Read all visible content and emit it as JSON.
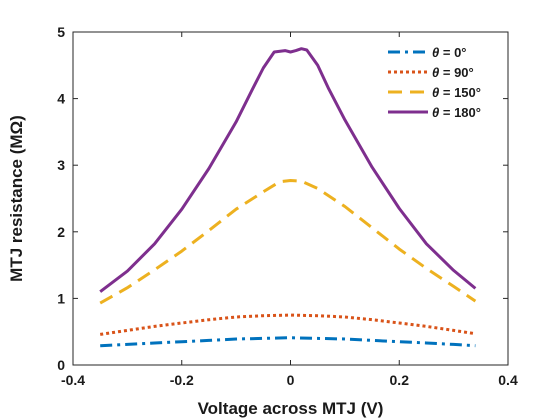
{
  "chart_data": {
    "type": "line",
    "title": "",
    "xlabel": "Voltage across MTJ (V)",
    "ylabel": "MTJ resistance (MΩ)",
    "xlim": [
      -0.4,
      0.4
    ],
    "ylim": [
      0,
      5
    ],
    "xticks": [
      -0.4,
      -0.2,
      0,
      0.2,
      0.4
    ],
    "xtick_labels": [
      "-0.4",
      "-0.2",
      "0",
      "0.2",
      "0.4"
    ],
    "yticks": [
      0,
      1,
      2,
      3,
      4,
      5
    ],
    "ytick_labels": [
      "0",
      "1",
      "2",
      "3",
      "4",
      "5"
    ],
    "grid": false,
    "legend_position": "top-right",
    "series": [
      {
        "name": "θ = 0°",
        "legend_symbol": "θ",
        "legend_suffix": " = 0°",
        "color": "#0072BD",
        "dash": "dash-dot",
        "x": [
          -0.35,
          -0.3,
          -0.25,
          -0.2,
          -0.15,
          -0.1,
          -0.05,
          0,
          0.05,
          0.1,
          0.15,
          0.2,
          0.25,
          0.3,
          0.34
        ],
        "y": [
          0.29,
          0.31,
          0.33,
          0.35,
          0.37,
          0.39,
          0.4,
          0.41,
          0.4,
          0.39,
          0.37,
          0.35,
          0.33,
          0.31,
          0.29
        ]
      },
      {
        "name": "θ = 90°",
        "legend_symbol": "θ",
        "legend_suffix": " = 90°",
        "color": "#D95319",
        "dash": "dotted",
        "x": [
          -0.35,
          -0.3,
          -0.25,
          -0.2,
          -0.15,
          -0.1,
          -0.05,
          0,
          0.05,
          0.1,
          0.15,
          0.2,
          0.25,
          0.3,
          0.34
        ],
        "y": [
          0.46,
          0.52,
          0.58,
          0.63,
          0.68,
          0.72,
          0.74,
          0.75,
          0.74,
          0.72,
          0.68,
          0.63,
          0.58,
          0.52,
          0.47
        ]
      },
      {
        "name": "θ = 150°",
        "legend_symbol": "θ",
        "legend_suffix": " = 150°",
        "color": "#EDB120",
        "dash": "dashed",
        "x": [
          -0.35,
          -0.3,
          -0.25,
          -0.2,
          -0.15,
          -0.1,
          -0.05,
          -0.02,
          0,
          0.02,
          0.05,
          0.1,
          0.15,
          0.2,
          0.25,
          0.3,
          0.34
        ],
        "y": [
          0.93,
          1.16,
          1.43,
          1.71,
          2.02,
          2.34,
          2.6,
          2.75,
          2.77,
          2.76,
          2.65,
          2.38,
          2.06,
          1.74,
          1.45,
          1.18,
          0.96
        ]
      },
      {
        "name": "θ = 180°",
        "legend_symbol": "θ",
        "legend_suffix": " = 180°",
        "color": "#7E2F8E",
        "dash": "solid",
        "x": [
          -0.35,
          -0.3,
          -0.25,
          -0.2,
          -0.15,
          -0.1,
          -0.07,
          -0.05,
          -0.03,
          -0.01,
          0,
          0.01,
          0.02,
          0.03,
          0.05,
          0.07,
          0.1,
          0.15,
          0.2,
          0.25,
          0.3,
          0.34
        ],
        "y": [
          1.1,
          1.41,
          1.82,
          2.34,
          2.95,
          3.65,
          4.14,
          4.46,
          4.7,
          4.72,
          4.7,
          4.72,
          4.75,
          4.73,
          4.5,
          4.15,
          3.68,
          2.97,
          2.35,
          1.82,
          1.42,
          1.15
        ]
      }
    ]
  }
}
